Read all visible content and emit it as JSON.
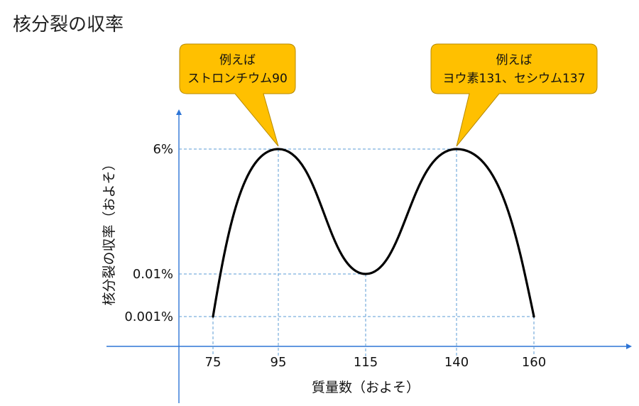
{
  "chart_data": {
    "type": "line",
    "title": "核分裂の収率",
    "xlabel": "質量数（およそ）",
    "ylabel": "核分裂の収率（およそ）",
    "x_ticks": [
      75,
      95,
      115,
      140,
      160
    ],
    "y_ticks": [
      "0.001%",
      "0.01%",
      "6%"
    ],
    "series": [
      {
        "values": [
          {
            "x": 75,
            "y": "0.001%"
          },
          {
            "x": 95,
            "y": "6%"
          },
          {
            "x": 115,
            "y": "0.01%"
          },
          {
            "x": 140,
            "y": "6%"
          },
          {
            "x": 160,
            "y": "0.001%"
          }
        ]
      }
    ],
    "annotations": [
      {
        "x": 95,
        "y": "6%",
        "lines": [
          "例えば",
          "ストロンチウム90"
        ],
        "color": "#FFC000"
      },
      {
        "x": 140,
        "y": "6%",
        "lines": [
          "例えば",
          "ヨウ素131、セシウム137"
        ],
        "color": "#FFC000"
      }
    ],
    "axis_color": "#2E75D6",
    "guide_color": "#5B9BD5",
    "curve_color": "#000000"
  }
}
